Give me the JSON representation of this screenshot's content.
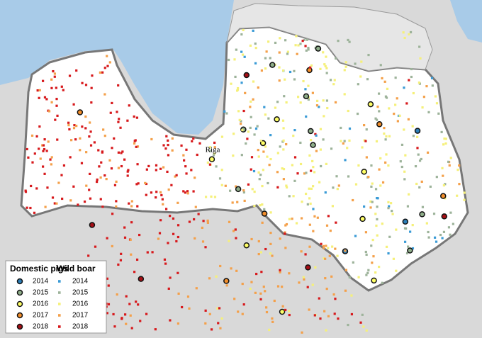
{
  "map": {
    "label": "Riga",
    "legend": {
      "groups": [
        {
          "title": "Domestic pigs",
          "items": [
            {
              "label": "2014",
              "color": "#2c7fb8"
            },
            {
              "label": "2015",
              "color": "#8fae8a"
            },
            {
              "label": "2016",
              "color": "#ffff66"
            },
            {
              "label": "2017",
              "color": "#f28e2b"
            },
            {
              "label": "2018",
              "color": "#a50f15"
            }
          ]
        },
        {
          "title": "Wild boar",
          "items": [
            {
              "label": "2014",
              "color": "#3a9bd6"
            },
            {
              "label": "2015",
              "color": "#9db39a"
            },
            {
              "label": "2016",
              "color": "#f5f07a"
            },
            {
              "label": "2017",
              "color": "#f4a04a"
            },
            {
              "label": "2018",
              "color": "#d7191c"
            }
          ]
        }
      ]
    }
  }
}
